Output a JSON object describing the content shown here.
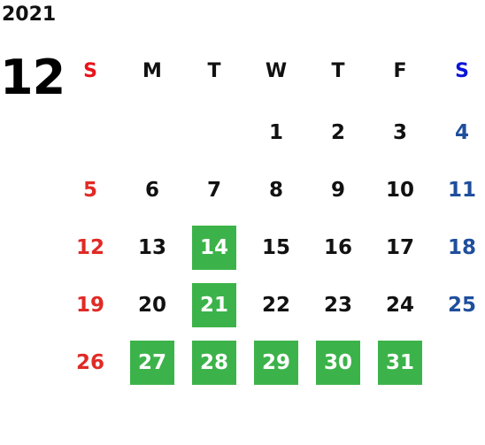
{
  "year": "2021",
  "month": "12",
  "weekdays": [
    "S",
    "M",
    "T",
    "W",
    "T",
    "F",
    "S"
  ],
  "weeks": [
    [
      null,
      null,
      null,
      {
        "text": "1",
        "highlight": false
      },
      {
        "text": "2",
        "highlight": false
      },
      {
        "text": "3",
        "highlight": false
      },
      {
        "text": "4",
        "highlight": false
      }
    ],
    [
      {
        "text": "5",
        "highlight": false
      },
      {
        "text": "6",
        "highlight": false
      },
      {
        "text": "7",
        "highlight": false
      },
      {
        "text": "8",
        "highlight": false
      },
      {
        "text": "9",
        "highlight": false
      },
      {
        "text": "10",
        "highlight": false
      },
      {
        "text": "11",
        "highlight": false
      }
    ],
    [
      {
        "text": "12",
        "highlight": false
      },
      {
        "text": "13",
        "highlight": false
      },
      {
        "text": "14",
        "highlight": true
      },
      {
        "text": "15",
        "highlight": false
      },
      {
        "text": "16",
        "highlight": false
      },
      {
        "text": "17",
        "highlight": false
      },
      {
        "text": "18",
        "highlight": false
      }
    ],
    [
      {
        "text": "19",
        "highlight": false
      },
      {
        "text": "20",
        "highlight": false
      },
      {
        "text": "21",
        "highlight": true
      },
      {
        "text": "22",
        "highlight": false
      },
      {
        "text": "23",
        "highlight": false
      },
      {
        "text": "24",
        "highlight": false
      },
      {
        "text": "25",
        "highlight": false
      }
    ],
    [
      {
        "text": "26",
        "highlight": false
      },
      {
        "text": "27",
        "highlight": true
      },
      {
        "text": "28",
        "highlight": true
      },
      {
        "text": "29",
        "highlight": true
      },
      {
        "text": "30",
        "highlight": true
      },
      {
        "text": "31",
        "highlight": true
      },
      null
    ]
  ]
}
